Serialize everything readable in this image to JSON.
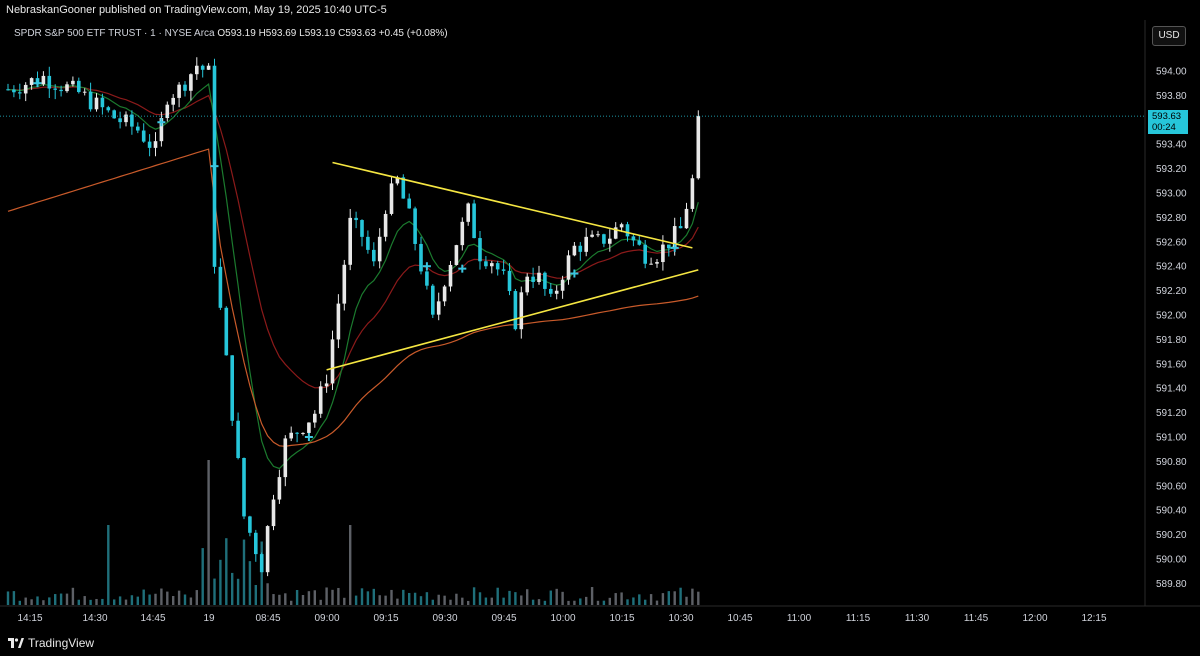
{
  "publisher_line": "NebraskanGooner published on TradingView.com, May 19, 2025 10:40 UTC-5",
  "legend": {
    "symbol": "SPDR S&P 500 ETF TRUST · 1 · NYSE Arca",
    "open": "O593.19",
    "high": "H593.69",
    "low": "L593.19",
    "close": "C593.63",
    "change": "+0.45 (+0.08%)"
  },
  "currency": "USD",
  "last_price": {
    "value": "593.63",
    "countdown": "00:24"
  },
  "footer": {
    "brand": "TradingView"
  },
  "colors": {
    "up": "#e8e8e8",
    "down": "#26c6da",
    "ema_fast": "#1b7a2e",
    "ema_slow": "#8b1a1a",
    "vwap": "#c85a2a",
    "trendline": "#f5e642",
    "marker": "#3ac6e0"
  },
  "chart_data": {
    "type": "candlestick",
    "y_axis": {
      "ticks": [
        "594.00",
        "593.80",
        "593.60",
        "593.40",
        "593.20",
        "593.00",
        "592.80",
        "592.60",
        "592.40",
        "592.20",
        "592.00",
        "591.80",
        "591.60",
        "591.40",
        "591.20",
        "591.00",
        "590.80",
        "590.60",
        "590.40",
        "590.20",
        "590.00",
        "589.80"
      ],
      "ylim": [
        589.75,
        594.1
      ]
    },
    "x_axis": {
      "ticks": [
        "14:15",
        "14:30",
        "14:45",
        "19",
        "08:45",
        "09:00",
        "09:15",
        "09:30",
        "09:45",
        "10:00",
        "10:15",
        "10:30",
        "10:45",
        "11:00",
        "11:15",
        "11:30",
        "11:45",
        "12:00",
        "12:15"
      ]
    },
    "last_price": 593.63,
    "day_markers": [
      {
        "price": 592.48,
        "note": "plus marker"
      }
    ],
    "trendlines": [
      {
        "from": {
          "bar": 55,
          "price": 593.25
        },
        "to": {
          "bar": 116,
          "price": 592.55
        }
      },
      {
        "from": {
          "bar": 54,
          "price": 591.55
        },
        "to": {
          "bar": 117,
          "price": 592.37
        }
      }
    ]
  }
}
